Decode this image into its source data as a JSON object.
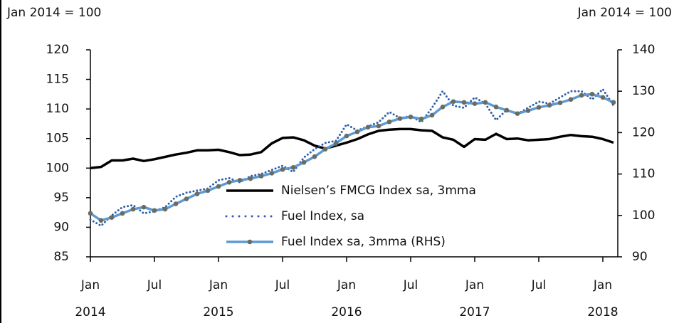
{
  "chart_data": {
    "type": "line",
    "y_unit_label": "Jan 2014 = 100",
    "y2_unit_label": "Jan 2014 = 100",
    "x": [
      0,
      1,
      2,
      3,
      4,
      5,
      6,
      7,
      8,
      9,
      10,
      11,
      12,
      13,
      14,
      15,
      16,
      17,
      18,
      19,
      20,
      21,
      22,
      23,
      24,
      25,
      26,
      27,
      28,
      29,
      30,
      31,
      32,
      33,
      34,
      35,
      36,
      37,
      38,
      39,
      40,
      41,
      42,
      43,
      44,
      45,
      46,
      47,
      48,
      49
    ],
    "xlim": [
      0,
      49.4
    ],
    "xticks": [
      {
        "value": 0,
        "label": "Jan"
      },
      {
        "value": 6,
        "label": "Jul"
      },
      {
        "value": 12,
        "label": "Jan"
      },
      {
        "value": 18,
        "label": "Jul"
      },
      {
        "value": 24,
        "label": "Jan"
      },
      {
        "value": 30,
        "label": "Jul"
      },
      {
        "value": 36,
        "label": "Jan"
      },
      {
        "value": 42,
        "label": "Jul"
      },
      {
        "value": 48,
        "label": "Jan"
      }
    ],
    "year_labels": [
      {
        "value": 0,
        "label": "2014"
      },
      {
        "value": 12,
        "label": "2015"
      },
      {
        "value": 24,
        "label": "2016"
      },
      {
        "value": 36,
        "label": "2017"
      },
      {
        "value": 48,
        "label": "2018"
      }
    ],
    "ylim": [
      85,
      120
    ],
    "yticks": [
      85,
      90,
      95,
      100,
      105,
      110,
      115,
      120
    ],
    "y2lim": [
      90,
      140
    ],
    "y2ticks": [
      90,
      100,
      110,
      120,
      130,
      140
    ],
    "series": [
      {
        "name": "Nielsen’s FMCG Index  sa, 3mma",
        "color": "#000000",
        "style": "solid",
        "axis": "y",
        "values": [
          100,
          100.2,
          101.3,
          101.3,
          101.6,
          101.2,
          101.5,
          101.9,
          102.3,
          102.6,
          103,
          103,
          103.1,
          102.7,
          102.2,
          102.3,
          102.7,
          104.2,
          105.1,
          105.2,
          104.7,
          103.8,
          103.3,
          103.8,
          104.3,
          104.9,
          105.7,
          106.3,
          106.5,
          106.6,
          106.6,
          106.4,
          106.3,
          105.2,
          104.8,
          103.6,
          104.9,
          104.8,
          105.8,
          104.9,
          105,
          104.7,
          104.8,
          104.9,
          105.3,
          105.6,
          105.4,
          105.3,
          104.9,
          104.3
        ]
      },
      {
        "name": "Fuel Index, sa",
        "color": "#2e5fa8",
        "style": "dotted",
        "axis": "y2",
        "values": [
          99,
          97.5,
          100,
          102,
          102.5,
          100.5,
          101,
          102,
          104.5,
          105.5,
          106,
          106.5,
          108.5,
          109,
          108,
          109.5,
          110,
          111,
          112,
          110.5,
          114,
          116,
          117.5,
          118,
          122,
          120.5,
          121.5,
          122.5,
          125,
          123.5,
          124,
          122.5,
          126,
          130,
          126.5,
          126,
          128.5,
          127,
          123,
          125.5,
          124.5,
          126,
          127.5,
          127,
          128.5,
          130,
          130,
          128,
          130.5,
          126.5
        ]
      },
      {
        "name": "Fuel Index sa, 3mma (RHS)",
        "color": "#5b9bd5",
        "style": "marker",
        "axis": "y2",
        "values": [
          100.5,
          98.8,
          99.5,
          100.5,
          101.5,
          102,
          101.2,
          101.5,
          102.8,
          104,
          105.2,
          106,
          107,
          108,
          108.5,
          108.9,
          109.5,
          110.2,
          111.1,
          111.6,
          112.8,
          114.2,
          116,
          117.4,
          119.2,
          120.2,
          121.3,
          121.6,
          122.6,
          123.4,
          123.8,
          123.3,
          124.2,
          126.2,
          127.5,
          127.3,
          127,
          127.3,
          126.2,
          125.4,
          124.6,
          125.3,
          126.1,
          126.6,
          127.2,
          128,
          129,
          129.3,
          128.5,
          127.3
        ]
      }
    ],
    "legend": "inside"
  }
}
